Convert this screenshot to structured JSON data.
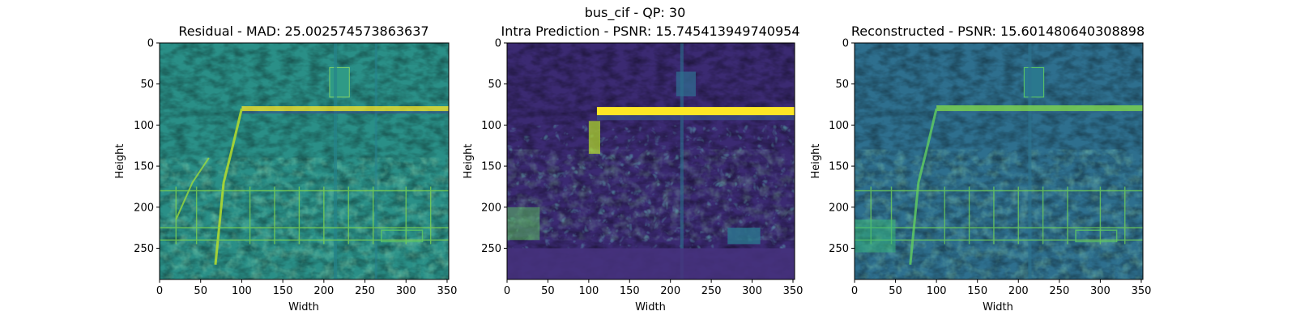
{
  "figure": {
    "suptitle": "bus_cif - QP: 30"
  },
  "colors": {
    "colormap": "viridis",
    "viridis_dark": "#440154",
    "viridis_teal": "#21918c",
    "viridis_yellow": "#fde725"
  },
  "chart_data": [
    {
      "type": "heatmap",
      "title": "Residual - MAD: 25.002574573863637",
      "xlabel": "Width",
      "ylabel": "Height",
      "xlim": [
        0,
        352
      ],
      "ylim": [
        288,
        0
      ],
      "xticks": [
        0,
        50,
        100,
        150,
        200,
        250,
        300,
        350
      ],
      "yticks": [
        0,
        50,
        100,
        150,
        200,
        250
      ],
      "colormap": "viridis",
      "image_size": [
        352,
        288
      ],
      "metric": {
        "name": "MAD",
        "value": 25.002574573863637
      }
    },
    {
      "type": "heatmap",
      "title": "Intra Prediction - PSNR: 15.745413949740954",
      "xlabel": "Width",
      "ylabel": "Height",
      "xlim": [
        0,
        352
      ],
      "ylim": [
        288,
        0
      ],
      "xticks": [
        0,
        50,
        100,
        150,
        200,
        250,
        300,
        350
      ],
      "yticks": [
        0,
        50,
        100,
        150,
        200,
        250
      ],
      "colormap": "viridis",
      "image_size": [
        352,
        288
      ],
      "metric": {
        "name": "PSNR",
        "value": 15.745413949740954
      }
    },
    {
      "type": "heatmap",
      "title": "Reconstructed - PSNR: 15.601480640308898",
      "xlabel": "Width",
      "ylabel": "Height",
      "xlim": [
        0,
        352
      ],
      "ylim": [
        288,
        0
      ],
      "xticks": [
        0,
        50,
        100,
        150,
        200,
        250,
        300,
        350
      ],
      "yticks": [
        0,
        50,
        100,
        150,
        200,
        250
      ],
      "colormap": "viridis",
      "image_size": [
        352,
        288
      ],
      "metric": {
        "name": "PSNR",
        "value": 15.601480640308898
      }
    }
  ]
}
